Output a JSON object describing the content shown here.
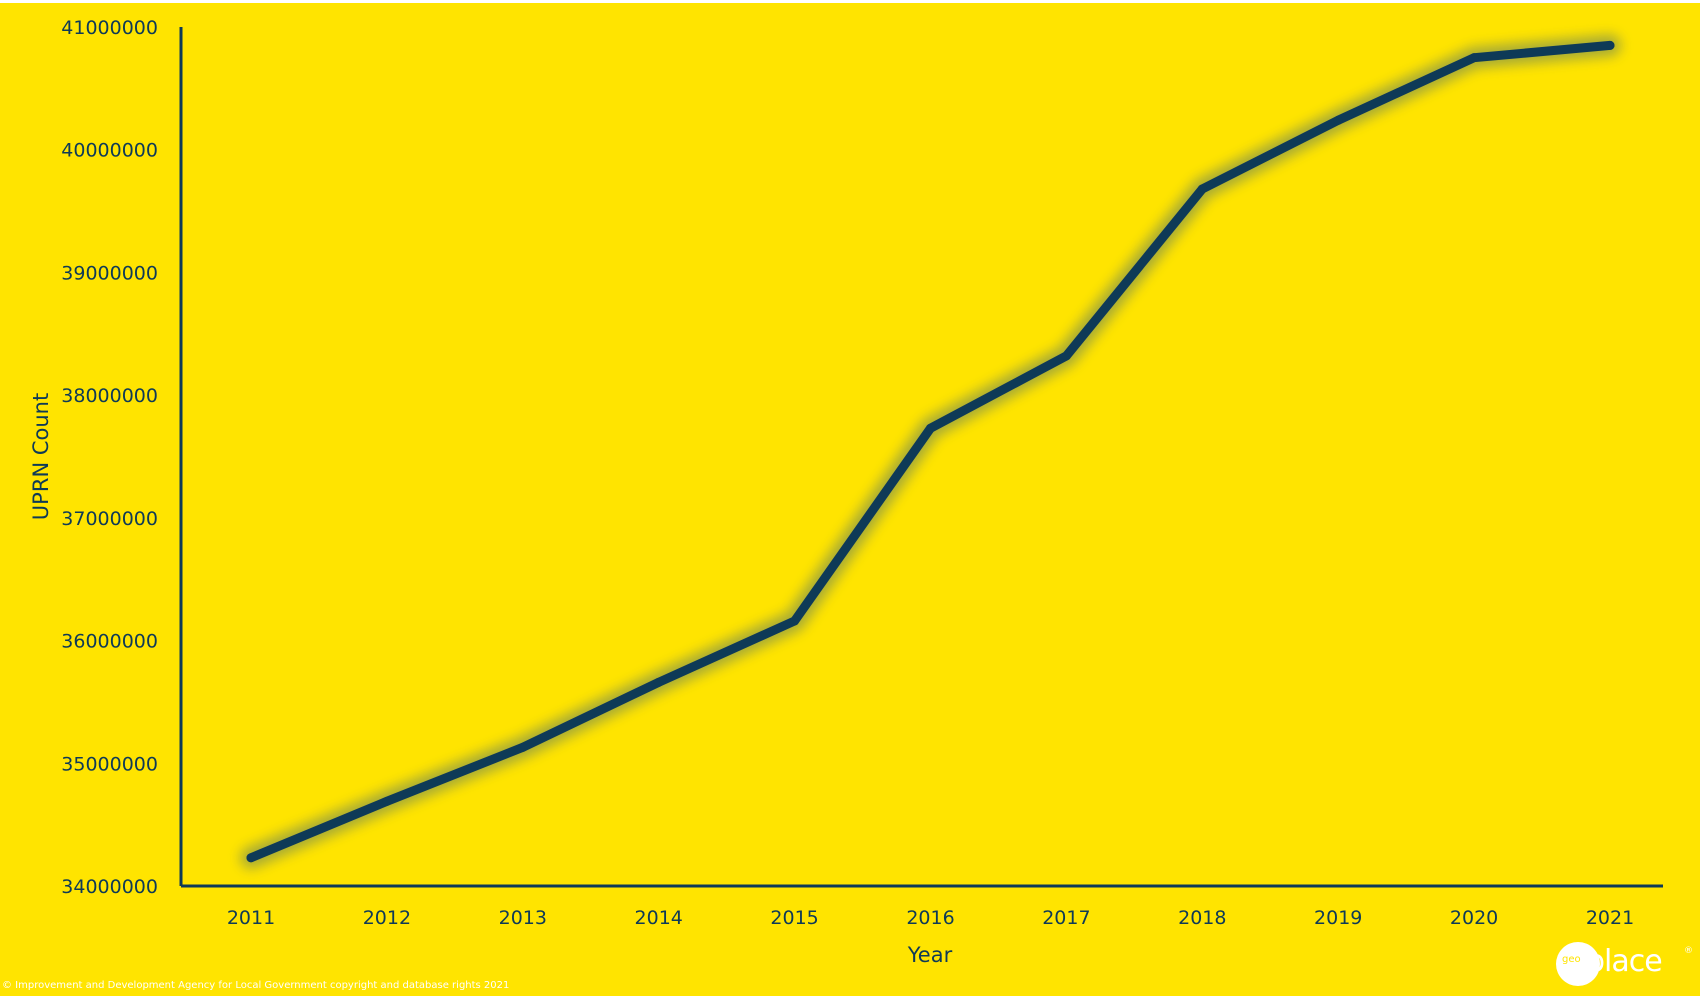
{
  "chart_data": {
    "type": "line",
    "xlabel": "Year",
    "ylabel": "UPRN Count",
    "x": [
      "2011",
      "2012",
      "2013",
      "2014",
      "2015",
      "2016",
      "2017",
      "2018",
      "2019",
      "2020",
      "2021"
    ],
    "values": [
      34230000,
      34690000,
      35130000,
      35660000,
      36160000,
      37730000,
      38320000,
      39680000,
      40240000,
      40750000,
      40850000
    ],
    "ylim": [
      34000000,
      41000000
    ],
    "yticks": [
      "34000000",
      "35000000",
      "36000000",
      "37000000",
      "38000000",
      "39000000",
      "40000000",
      "41000000"
    ],
    "grid": false,
    "legend": "none",
    "colors": {
      "background": "#FFE400",
      "line": "#0E3A57",
      "glow": "#9FA53A",
      "axis": "#0E3A57",
      "text": "#0E3A57"
    }
  },
  "footer": {
    "copyright": "© Improvement and Development Agency for Local Government copyright and database rights 2021",
    "logo_geo": "geo",
    "logo_place": "place",
    "logo_reg": "®"
  }
}
